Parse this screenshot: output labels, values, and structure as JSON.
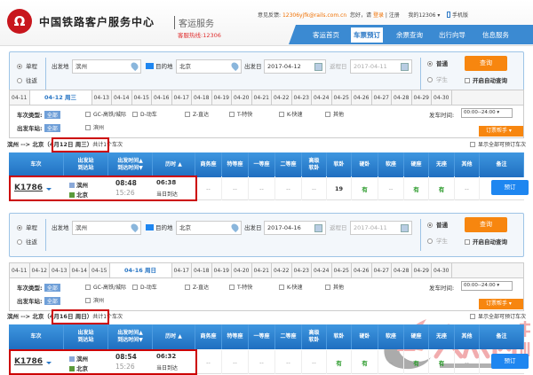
{
  "header": {
    "logo_glyph": "Ω",
    "title": "中国铁路客户服务中心",
    "subtitle": "客运服务",
    "hotline": "客服热线:12306",
    "feedback_label": "意见反馈:",
    "feedback_email": "12306yjfk@rails.com.cn",
    "greeting": "您好，请",
    "login": "登录",
    "sep": "|",
    "register": "注册",
    "my12306": "我的12306 ▾",
    "mobile": "手机版"
  },
  "nav": [
    {
      "label": "客运首页"
    },
    {
      "label": "车票预订",
      "active": true
    },
    {
      "label": "余票查询"
    },
    {
      "label": "出行向导"
    },
    {
      "label": "信息服务"
    }
  ],
  "common": {
    "oneway": "单程",
    "roundtrip": "往返",
    "from_label": "出发地",
    "to_label": "目的地",
    "date_label": "出发日",
    "return_label": "返程日",
    "normal": "普通",
    "student": "学生",
    "query": "查询",
    "auto_query": "开启自动查询",
    "type_label": "车次类型:",
    "all": "全部",
    "types": [
      "GC-高铁/城际",
      "D-动车",
      "Z-直达",
      "T-特快",
      "K-快速",
      "其他"
    ],
    "station_label": "出发车站:",
    "depart_time_label": "发车时间:",
    "depart_time": "00:00--24:00 ▾",
    "helper": "订票帮手 ▾",
    "show_all": "显示全部可预订车次",
    "columns": [
      "车次",
      "出发站\n到达站",
      "出发时间▲\n到达时间▼",
      "历时 ▲",
      "商务座",
      "特等座",
      "一等座",
      "二等座",
      "高级\n软卧",
      "软卧",
      "硬卧",
      "软座",
      "硬座",
      "无座",
      "其他",
      "备注"
    ],
    "book": "预订",
    "same_day": "当日到达",
    "accent": "#3b8ad2",
    "orange": "#f7860f",
    "red_box": "#cc0000"
  },
  "sections": [
    {
      "from": "滨州",
      "to": "北京",
      "date": "2017-04-12",
      "return_date": "2017-04-11",
      "dates_before": [
        "04-11"
      ],
      "active_date": "04-12 周三",
      "dates_after": [
        "04-13",
        "04-14",
        "04-15",
        "04-16",
        "04-17",
        "04-18",
        "04-19",
        "04-20",
        "04-21",
        "04-22",
        "04-23",
        "04-24",
        "04-25",
        "04-26",
        "04-27",
        "04-28",
        "04-29",
        "04-30"
      ],
      "station": "滨州",
      "route": "滨州 --> 北京",
      "route_date": "（4月12日  周三）",
      "count": "共计1个车次",
      "train": {
        "no": "K1786",
        "from": "滨州",
        "to": "北京",
        "dep": "08:48",
        "arr": "15:26",
        "dur": "06:38",
        "seats": [
          "--",
          "--",
          "--",
          "--",
          "--",
          "19",
          "有",
          "--",
          "有",
          "有",
          "--"
        ]
      }
    },
    {
      "from": "滨州",
      "to": "北京",
      "date": "2017-04-16",
      "return_date": "2017-04-11",
      "dates_before": [
        "04-11",
        "04-12",
        "04-13",
        "04-14",
        "04-15"
      ],
      "active_date": "04-16 周日",
      "dates_after": [
        "04-17",
        "04-18",
        "04-19",
        "04-20",
        "04-21",
        "04-22",
        "04-23",
        "04-24",
        "04-25",
        "04-26",
        "04-27",
        "04-28",
        "04-29",
        "04-30"
      ],
      "station": "滨州",
      "route": "滨州 --> 北京",
      "route_date": "（4月16日  周日）",
      "count": "共计1个车次",
      "train": {
        "no": "K1786",
        "from": "滨州",
        "to": "北京",
        "dep": "08:54",
        "arr": "15:26",
        "dur": "06:32",
        "seats": [
          "--",
          "--",
          "--",
          "--",
          "--",
          "有",
          "有",
          "--",
          "有",
          "有",
          "--"
        ]
      }
    }
  ],
  "watermark": {
    "text": "大众网",
    "city": "滨州",
    "url": "binzhou.dzwww.com"
  }
}
